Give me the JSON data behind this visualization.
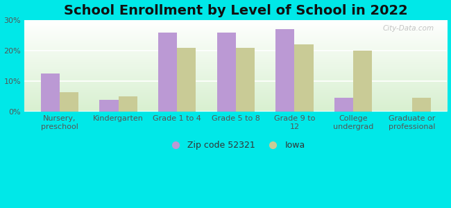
{
  "title": "School Enrollment by Level of School in 2022",
  "categories": [
    "Nursery,\npreschool",
    "Kindergarten",
    "Grade 1 to 4",
    "Grade 5 to 8",
    "Grade 9 to\n12",
    "College\nundergrad",
    "Graduate or\nprofessional"
  ],
  "zip_values": [
    12.5,
    4.0,
    26.0,
    26.0,
    27.0,
    4.5,
    0.0
  ],
  "iowa_values": [
    6.5,
    5.0,
    21.0,
    21.0,
    22.0,
    20.0,
    4.5
  ],
  "zip_color": "#bb99d4",
  "iowa_color": "#c9cb96",
  "background_color": "#00e8e8",
  "ylim": [
    0,
    30
  ],
  "yticks": [
    0,
    10,
    20,
    30
  ],
  "ytick_labels": [
    "0%",
    "10%",
    "20%",
    "30%"
  ],
  "legend_zip_label": "Zip code 52321",
  "legend_iowa_label": "Iowa",
  "watermark": "City-Data.com",
  "title_fontsize": 14,
  "tick_fontsize": 8,
  "legend_fontsize": 9
}
